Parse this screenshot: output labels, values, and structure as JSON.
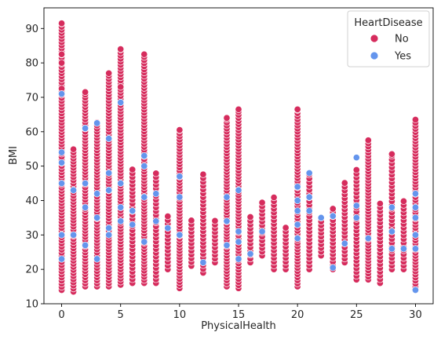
{
  "chart_data": {
    "type": "scatter",
    "xlabel": "PhysicalHealth",
    "ylabel": "BMI",
    "xlim": [
      -1.5,
      31.5
    ],
    "ylim": [
      10.0,
      96.0
    ],
    "x_ticks": [
      0,
      5,
      10,
      15,
      20,
      25,
      30
    ],
    "y_ticks": [
      10,
      20,
      30,
      40,
      50,
      60,
      70,
      80,
      90
    ],
    "grid": false,
    "legend": {
      "title": "HeartDisease",
      "placement": "top-right",
      "entries": [
        "No",
        "Yes"
      ]
    },
    "series": [
      {
        "name": "No",
        "color": "#d62c5d",
        "x_values": [
          0,
          1,
          2,
          3,
          4,
          5,
          6,
          7,
          8,
          9,
          10,
          11,
          12,
          13,
          14,
          15,
          16,
          17,
          18,
          19,
          20,
          21,
          22,
          23,
          24,
          25,
          26,
          27,
          28,
          29,
          30
        ],
        "y_ranges": [
          [
            14,
            92
          ],
          [
            13.5,
            55
          ],
          [
            15,
            71
          ],
          [
            15,
            63
          ],
          [
            15,
            77
          ],
          [
            15.5,
            84
          ],
          [
            16,
            50
          ],
          [
            16,
            82.5
          ],
          [
            16,
            48
          ],
          [
            20,
            36
          ],
          [
            14.5,
            60.5
          ],
          [
            21,
            35
          ],
          [
            19,
            48
          ],
          [
            22,
            35
          ],
          [
            15,
            64
          ],
          [
            14.5,
            66.5
          ],
          [
            22,
            36
          ],
          [
            24,
            40
          ],
          [
            20,
            42
          ],
          [
            20,
            33
          ],
          [
            15,
            66.5
          ],
          [
            20,
            48
          ],
          [
            24,
            36
          ],
          [
            20,
            38
          ],
          [
            22,
            46
          ],
          [
            17,
            50
          ],
          [
            17,
            57.5
          ],
          [
            16,
            40
          ],
          [
            20,
            53.5
          ],
          [
            20,
            40
          ],
          [
            14,
            64
          ]
        ],
        "extra_points": [
          [
            0,
            91.5
          ],
          [
            0,
            82.5
          ],
          [
            0,
            80
          ],
          [
            0,
            72.5
          ],
          [
            2,
            71.5
          ],
          [
            4,
            77
          ],
          [
            5,
            84
          ],
          [
            5,
            73
          ],
          [
            7,
            82.5
          ],
          [
            10,
            60.5
          ],
          [
            14,
            64
          ],
          [
            15,
            66.5
          ],
          [
            20,
            66.5
          ],
          [
            28,
            53.5
          ],
          [
            26,
            57.5
          ]
        ]
      },
      {
        "name": "Yes",
        "color": "#6495ed",
        "points": [
          [
            0,
            71
          ],
          [
            0,
            54
          ],
          [
            0,
            51
          ],
          [
            0,
            45
          ],
          [
            0,
            30
          ],
          [
            0,
            23
          ],
          [
            1,
            43
          ],
          [
            1,
            30
          ],
          [
            2,
            61
          ],
          [
            2,
            45
          ],
          [
            2,
            38
          ],
          [
            2,
            27
          ],
          [
            3,
            62.5
          ],
          [
            3,
            42
          ],
          [
            3,
            35
          ],
          [
            3,
            23
          ],
          [
            4,
            58
          ],
          [
            4,
            48
          ],
          [
            4,
            43
          ],
          [
            4,
            32
          ],
          [
            4,
            30
          ],
          [
            5,
            68.5
          ],
          [
            5,
            45
          ],
          [
            5,
            38
          ],
          [
            5,
            34
          ],
          [
            6,
            37
          ],
          [
            6,
            33
          ],
          [
            7,
            53
          ],
          [
            7,
            50
          ],
          [
            7,
            41
          ],
          [
            7,
            28
          ],
          [
            8,
            42
          ],
          [
            8,
            34
          ],
          [
            9,
            32
          ],
          [
            10,
            47
          ],
          [
            10,
            41
          ],
          [
            10,
            30
          ],
          [
            12,
            22
          ],
          [
            14,
            41
          ],
          [
            14,
            34
          ],
          [
            14,
            27
          ],
          [
            15,
            43
          ],
          [
            15,
            31
          ],
          [
            15,
            28
          ],
          [
            15,
            23
          ],
          [
            16,
            24.5
          ],
          [
            17,
            31
          ],
          [
            20,
            44
          ],
          [
            20,
            40
          ],
          [
            20,
            37
          ],
          [
            20,
            33
          ],
          [
            20,
            29
          ],
          [
            21,
            48
          ],
          [
            21,
            41
          ],
          [
            21,
            37
          ],
          [
            22,
            35
          ],
          [
            23,
            20.5
          ],
          [
            23,
            35.5
          ],
          [
            24,
            27.5
          ],
          [
            25,
            52.5
          ],
          [
            25,
            38.5
          ],
          [
            25,
            35
          ],
          [
            26,
            29
          ],
          [
            28,
            38
          ],
          [
            28,
            31
          ],
          [
            28,
            26
          ],
          [
            29,
            26
          ],
          [
            30,
            42
          ],
          [
            30,
            38
          ],
          [
            30,
            35
          ],
          [
            30,
            30
          ],
          [
            30,
            26
          ],
          [
            30,
            14
          ]
        ]
      }
    ]
  }
}
